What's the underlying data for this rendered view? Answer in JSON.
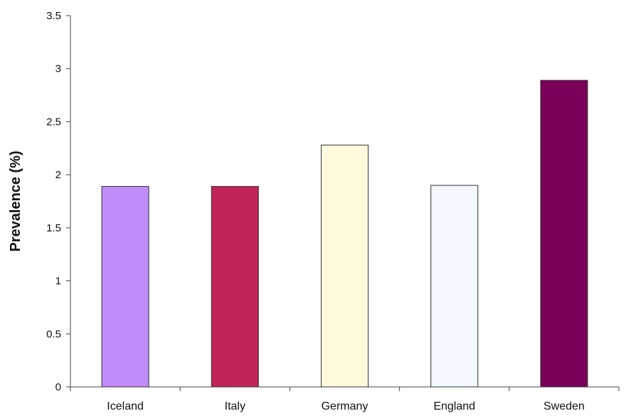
{
  "chart_data": {
    "type": "bar",
    "title": "",
    "xlabel": "",
    "ylabel": "Prevalence (%)",
    "ylim": [
      0,
      3.5
    ],
    "yticks": [
      0,
      0.5,
      1,
      1.5,
      2,
      2.5,
      3,
      3.5
    ],
    "ytick_labels": [
      "0",
      "0.5",
      "1",
      "1.5",
      "2",
      "2.5",
      "3",
      "3.5"
    ],
    "grid": false,
    "legend": "none",
    "categories": [
      "Iceland",
      "Italy",
      "Germany",
      "England",
      "Sweden"
    ],
    "values": [
      1.89,
      1.89,
      2.28,
      1.9,
      2.89
    ],
    "colors": [
      "#c08cfa",
      "#c0245a",
      "#fffadc",
      "#f2f8fe",
      "#7a005a"
    ],
    "bar_edge_color": "#333333"
  }
}
